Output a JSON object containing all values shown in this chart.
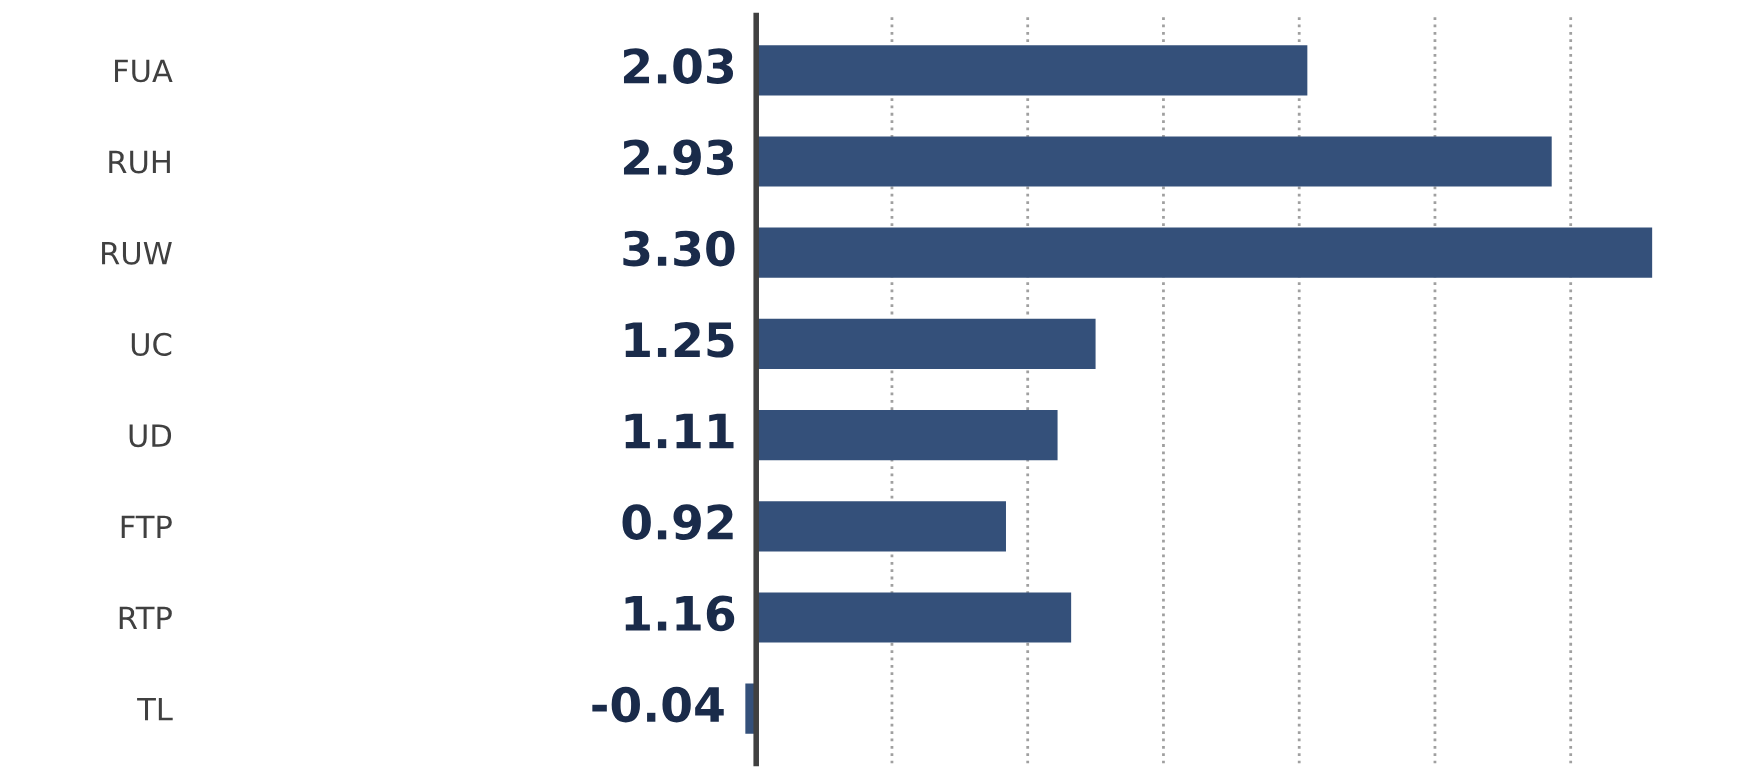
{
  "chart_data": {
    "type": "bar",
    "orientation": "horizontal",
    "categories": [
      "FUA",
      "RUH",
      "RUW",
      "UC",
      "UD",
      "FTP",
      "RTP",
      "TL"
    ],
    "values": [
      2.03,
      2.93,
      3.3,
      1.25,
      1.11,
      0.92,
      1.16,
      -0.04
    ],
    "value_labels": [
      "2.03",
      "2.93",
      "3.30",
      "1.25",
      "1.11",
      "0.92",
      "1.16",
      "-0.04"
    ],
    "color": "#34507a",
    "grid": "x",
    "tick_labels": "y"
  }
}
